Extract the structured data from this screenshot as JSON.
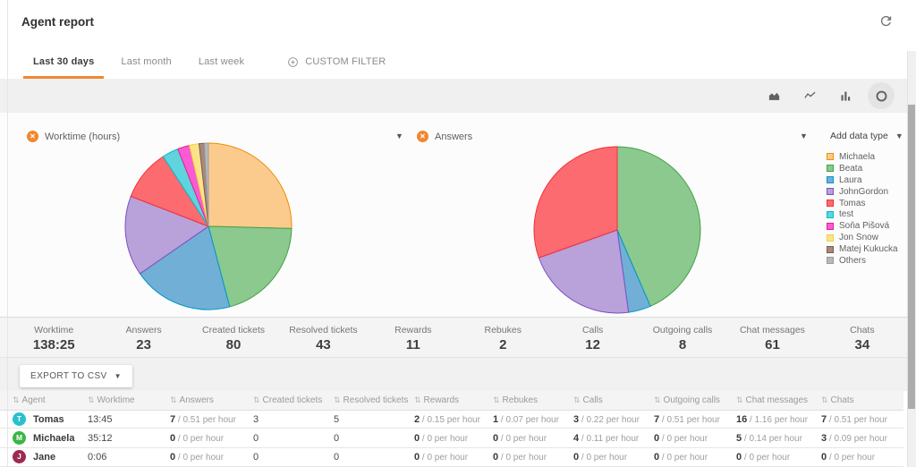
{
  "header": {
    "title": "Agent report"
  },
  "tabs": [
    {
      "label": "Last 30 days",
      "active": true
    },
    {
      "label": "Last month",
      "active": false
    },
    {
      "label": "Last week",
      "active": false
    },
    {
      "label": "CUSTOM FILTER",
      "active": false
    }
  ],
  "toolbar": {
    "icons": [
      "area-chart",
      "line-chart",
      "bar-chart",
      "pie-chart"
    ],
    "active": "pie-chart"
  },
  "charts": {
    "left": {
      "title": "Worktime (hours)"
    },
    "right": {
      "title": "Answers"
    },
    "add_data_type": "Add data type"
  },
  "legend": [
    {
      "label": "Michaela",
      "fill": "#FBCB8E",
      "stroke": "#F08C00"
    },
    {
      "label": "Beata",
      "fill": "#8BC98E",
      "stroke": "#43A047"
    },
    {
      "label": "Laura",
      "fill": "#72AFD6",
      "stroke": "#0098C7"
    },
    {
      "label": "JohnGordon",
      "fill": "#B9A1DA",
      "stroke": "#7B52C1"
    },
    {
      "label": "Tomas",
      "fill": "#FB6B70",
      "stroke": "#F23037"
    },
    {
      "label": "test",
      "fill": "#5FD4DC",
      "stroke": "#00BCD4"
    },
    {
      "label": "Soňa Pišová",
      "fill": "#FA5BD4",
      "stroke": "#E91E8C"
    },
    {
      "label": "Jon Snow",
      "fill": "#F9E48A",
      "stroke": "#F5CF3A"
    },
    {
      "label": "Matej Kukucka",
      "fill": "#A78A7F",
      "stroke": "#7D5A4F"
    },
    {
      "label": "Others",
      "fill": "#B9B9B9",
      "stroke": "#999999"
    }
  ],
  "chart_data": [
    {
      "type": "pie",
      "title": "Worktime (hours)",
      "labels": [
        "Michaela",
        "Beata",
        "Laura",
        "JohnGordon",
        "Tomas",
        "test",
        "Soňa Pišová",
        "Jon Snow",
        "Matej Kukucka",
        "Others"
      ],
      "values": [
        35.2,
        28.4,
        27.0,
        21.5,
        13.8,
        4.4,
        3.2,
        2.6,
        1.4,
        1.1
      ],
      "total_label": "138:25",
      "units": "hours",
      "legend_position": "right"
    },
    {
      "type": "pie",
      "title": "Answers",
      "labels": [
        "Beata",
        "Laura",
        "JohnGordon",
        "Tomas"
      ],
      "values": [
        10,
        1,
        5,
        7
      ],
      "total_label": "23",
      "units": "answers",
      "legend_position": "right"
    }
  ],
  "stats": [
    {
      "label": "Worktime",
      "value": "138:25"
    },
    {
      "label": "Answers",
      "value": "23"
    },
    {
      "label": "Created tickets",
      "value": "80"
    },
    {
      "label": "Resolved tickets",
      "value": "43"
    },
    {
      "label": "Rewards",
      "value": "11"
    },
    {
      "label": "Rebukes",
      "value": "2"
    },
    {
      "label": "Calls",
      "value": "12"
    },
    {
      "label": "Outgoing calls",
      "value": "8"
    },
    {
      "label": "Chat messages",
      "value": "61"
    },
    {
      "label": "Chats",
      "value": "34"
    }
  ],
  "export_button": {
    "label": "EXPORT TO CSV"
  },
  "table": {
    "columns": [
      "Agent",
      "Worktime",
      "Answers",
      "Created tickets",
      "Resolved tickets",
      "Rewards",
      "Rebukes",
      "Calls",
      "Outgoing calls",
      "Chat messages",
      "Chats"
    ],
    "rows": [
      {
        "agent": "Tomas",
        "avatar": "T",
        "avatar_color": "#27C0CE",
        "cells": [
          "13:45",
          "7 / 0.51 per hour",
          "3",
          "5",
          "2 / 0.15 per hour",
          "1 / 0.07 per hour",
          "3 / 0.22 per hour",
          "7 / 0.51 per hour",
          "16 / 1.16 per hour",
          "7 / 0.51 per hour"
        ]
      },
      {
        "agent": "Michaela",
        "avatar": "M",
        "avatar_color": "#3CB549",
        "cells": [
          "35:12",
          "0 / 0 per hour",
          "0",
          "0",
          "0 / 0 per hour",
          "0 / 0 per hour",
          "4 / 0.11 per hour",
          "0 / 0 per hour",
          "5 / 0.14 per hour",
          "3 / 0.09 per hour"
        ]
      },
      {
        "agent": "Jane",
        "avatar": "J",
        "avatar_color": "#9D2A52",
        "cells": [
          "0:06",
          "0 / 0 per hour",
          "0",
          "0",
          "0 / 0 per hour",
          "0 / 0 per hour",
          "0 / 0 per hour",
          "0 / 0 per hour",
          "0 / 0 per hour",
          "0 / 0 per hour"
        ]
      }
    ]
  },
  "colors": {
    "accent": "#F0882F"
  }
}
